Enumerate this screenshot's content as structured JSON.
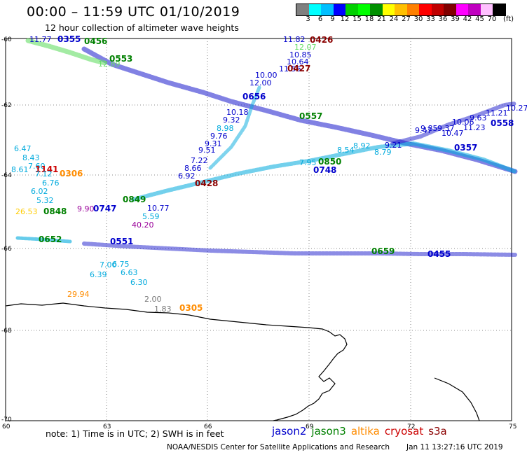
{
  "header": {
    "title": "00:00 – 11:59 UTC 01/10/2019",
    "subtitle": "12 hour collection of altimeter wave heights"
  },
  "color_scale": {
    "unit": "(ft)",
    "colors": [
      "#808080",
      "#00ffff",
      "#00bfff",
      "#0000ff",
      "#00d000",
      "#00ff00",
      "#009000",
      "#ffff00",
      "#ffc000",
      "#ff8000",
      "#ff0000",
      "#c00000",
      "#800000",
      "#ff00ff",
      "#c000c0",
      "#ffc0ff",
      "#000000"
    ],
    "labels": [
      "3",
      "6",
      "9",
      "12",
      "15",
      "18",
      "21",
      "24",
      "27",
      "30",
      "33",
      "36",
      "39",
      "42",
      "45",
      "70"
    ]
  },
  "axes": {
    "lat_labels": [
      "-60",
      "-62",
      "-64",
      "-66",
      "-68",
      "-70"
    ],
    "lon_labels": [
      "60",
      "63",
      "66",
      "69",
      "72",
      "75"
    ]
  },
  "colors": {
    "jason2": "#0000cc",
    "jason3": "#008000",
    "altika": "#ff8c00",
    "cryosat": "#cc0000",
    "s3a": "#8b0000",
    "light_green": "#66dd66",
    "cyan": "#00aadd",
    "purple": "#990099",
    "grey": "#777777",
    "dark_red": "#8b0000"
  },
  "observations": [
    {
      "t": "11.82",
      "c": "#0000cc"
    },
    {
      "t": "0426",
      "c": "#8b0000",
      "time": true
    },
    {
      "t": "12.07",
      "c": "#66dd66"
    },
    {
      "t": "10.85",
      "c": "#0000cc"
    },
    {
      "t": "10.64",
      "c": "#0000cc"
    },
    {
      "t": "11.56",
      "c": "#0000cc"
    },
    {
      "t": "0427",
      "c": "#8b0000",
      "time": true
    },
    {
      "t": "10.00",
      "c": "#0000cc"
    },
    {
      "t": "12.00",
      "c": "#0000cc"
    },
    {
      "t": "10.18",
      "c": "#0000cc"
    },
    {
      "t": "9.32",
      "c": "#0000cc"
    },
    {
      "t": "8.98",
      "c": "#00aadd"
    },
    {
      "t": "9.76",
      "c": "#0000cc"
    },
    {
      "t": "9.31",
      "c": "#0000cc"
    },
    {
      "t": "9.51",
      "c": "#0000cc"
    },
    {
      "t": "7.22",
      "c": "#0000cc"
    },
    {
      "t": "8.66",
      "c": "#0000cc"
    },
    {
      "t": "6.92",
      "c": "#0000cc"
    },
    {
      "t": "0428",
      "c": "#8b0000",
      "time": true
    },
    {
      "t": "6.47",
      "c": "#00aadd"
    },
    {
      "t": "8.43",
      "c": "#00aadd"
    },
    {
      "t": "7.60",
      "c": "#00aadd"
    },
    {
      "t": "8.61",
      "c": "#00aadd"
    },
    {
      "t": "1141",
      "c": "#cc0000",
      "time": true
    },
    {
      "t": "7.12",
      "c": "#00aadd"
    },
    {
      "t": "0306",
      "c": "#ff8c00",
      "time": true
    },
    {
      "t": "6.76",
      "c": "#00aadd"
    },
    {
      "t": "6.02",
      "c": "#00aadd"
    },
    {
      "t": "5.32",
      "c": "#00aadd"
    },
    {
      "t": "26.53",
      "c": "#ffcc00"
    },
    {
      "t": "0848",
      "c": "#008000",
      "time": true
    },
    {
      "t": "9.90",
      "c": "#990099"
    },
    {
      "t": "0747",
      "c": "#0000cc",
      "time": true
    },
    {
      "t": "0849",
      "c": "#008000",
      "time": true
    },
    {
      "t": "10.77",
      "c": "#0000cc"
    },
    {
      "t": "5.59",
      "c": "#00aadd"
    },
    {
      "t": "40.20",
      "c": "#990099"
    },
    {
      "t": "0652",
      "c": "#008000",
      "time": true
    },
    {
      "t": "0551",
      "c": "#0000cc",
      "time": true
    },
    {
      "t": "6.39",
      "c": "#00aadd"
    },
    {
      "t": "7.00",
      "c": "#00aadd"
    },
    {
      "t": "6.75",
      "c": "#00aadd"
    },
    {
      "t": "6.63",
      "c": "#00aadd"
    },
    {
      "t": "6.30",
      "c": "#00aadd"
    },
    {
      "t": "29.94",
      "c": "#ff8c00"
    },
    {
      "t": "2.00",
      "c": "#777777"
    },
    {
      "t": "1.83",
      "c": "#777777"
    },
    {
      "t": "0305",
      "c": "#ff8c00",
      "time": true
    },
    {
      "t": "0656",
      "c": "#0000cc",
      "time": true
    },
    {
      "t": "0357",
      "c": "#0000cc",
      "time": true
    },
    {
      "t": "0557",
      "c": "#008000",
      "time": true
    },
    {
      "t": "0850",
      "c": "#008000",
      "time": true
    },
    {
      "t": "0748",
      "c": "#0000cc",
      "time": true
    },
    {
      "t": "7.95",
      "c": "#00aadd"
    },
    {
      "t": "8.54",
      "c": "#00aadd"
    },
    {
      "t": "8.92",
      "c": "#00aadd"
    },
    {
      "t": "8.79",
      "c": "#00aadd"
    },
    {
      "t": "9.21",
      "c": "#0000cc"
    },
    {
      "t": "9.47",
      "c": "#0000cc"
    },
    {
      "t": "9.85",
      "c": "#0000cc"
    },
    {
      "t": "9.37",
      "c": "#0000cc"
    },
    {
      "t": "10.47",
      "c": "#0000cc"
    },
    {
      "t": "10.06",
      "c": "#0000cc"
    },
    {
      "t": "9.63",
      "c": "#0000cc"
    },
    {
      "t": "11.21",
      "c": "#0000cc"
    },
    {
      "t": "10.27",
      "c": "#0000cc"
    },
    {
      "t": "11.23",
      "c": "#0000cc"
    },
    {
      "t": "0558",
      "c": "#0000cc",
      "time": true
    },
    {
      "t": "0659",
      "c": "#008000",
      "time": true
    },
    {
      "t": "0455",
      "c": "#0000cc",
      "time": true
    },
    {
      "t": "0355",
      "c": "#0000cc",
      "time": true
    },
    {
      "t": "0456",
      "c": "#008000",
      "time": true
    },
    {
      "t": "12.89",
      "c": "#66dd66"
    },
    {
      "t": "11.77",
      "c": "#0000cc"
    },
    {
      "t": "0553",
      "c": "#008000",
      "time": true
    }
  ],
  "footer": {
    "note": "note: 1) Time is in UTC; 2) SWH is in feet",
    "legend": [
      {
        "name": "jason2",
        "color": "#0000cc"
      },
      {
        "name": "jason3",
        "color": "#008000"
      },
      {
        "name": "altika",
        "color": "#ff8c00"
      },
      {
        "name": "cryosat",
        "color": "#cc0000"
      },
      {
        "name": "s3a",
        "color": "#8b0000"
      }
    ],
    "credit": "NOAA/NESDIS Center for Satellite Applications and Research",
    "generated": "Jan 11 13:27:16 UTC 2019"
  }
}
